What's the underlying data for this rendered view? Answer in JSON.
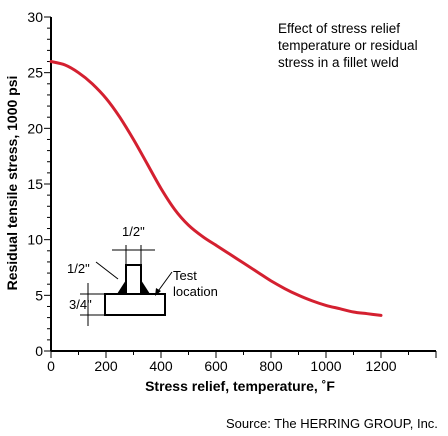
{
  "chart_data": {
    "type": "line",
    "title": "",
    "xlabel": "Stress relief, temperature, ˚F",
    "ylabel": "Residual tensile stress, 1000 psi",
    "xlim": [
      0,
      1400
    ],
    "ylim": [
      0,
      30
    ],
    "x_ticks": [
      "0",
      "200",
      "400",
      "600",
      "800",
      "1000",
      "1200"
    ],
    "y_ticks": [
      "0",
      "5",
      "10",
      "15",
      "20",
      "25",
      "30"
    ],
    "grid": false,
    "series": [
      {
        "color": "#d42030",
        "x": [
          0,
          50,
          100,
          150,
          200,
          250,
          300,
          350,
          400,
          450,
          500,
          550,
          600,
          650,
          700,
          750,
          800,
          850,
          900,
          950,
          1000,
          1050,
          1100,
          1150,
          1200
        ],
        "y": [
          26.0,
          25.7,
          25.0,
          24.0,
          22.7,
          21.0,
          19.0,
          16.8,
          14.6,
          12.7,
          11.3,
          10.3,
          9.5,
          8.7,
          7.9,
          7.1,
          6.3,
          5.6,
          5.0,
          4.5,
          4.1,
          3.8,
          3.5,
          3.35,
          3.2
        ]
      }
    ],
    "annotation": [
      "Effect of stress relief",
      "temperature or residual",
      "stress in a fillet weld"
    ]
  },
  "inset": {
    "dim_top": "1/2\"",
    "dim_left": "1/2\"",
    "dim_bottom": "3/4\"",
    "test_label": [
      "Test",
      "location"
    ]
  },
  "source": "Source: The HERRING GROUP, Inc."
}
